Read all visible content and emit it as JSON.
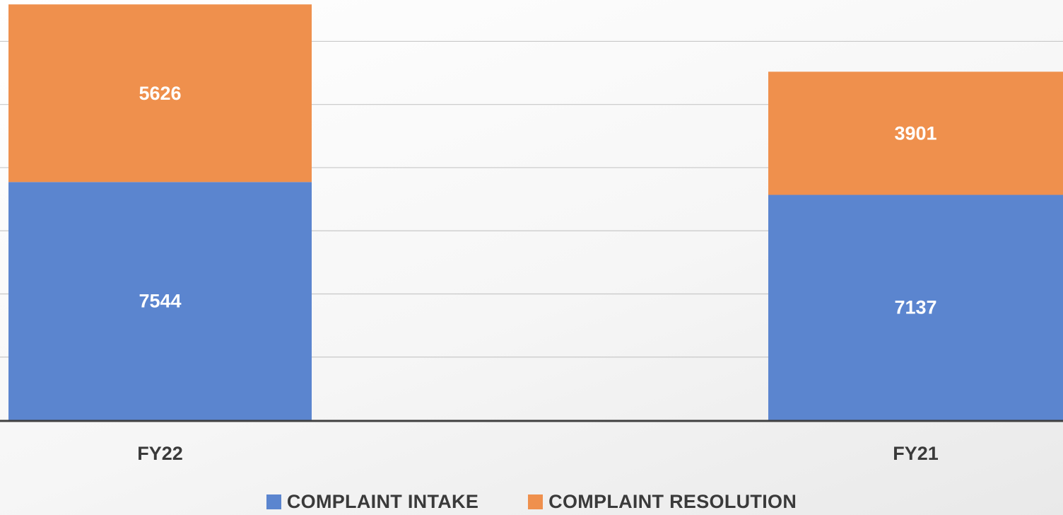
{
  "chart_data": {
    "type": "bar",
    "stacked": true,
    "categories": [
      "FY22",
      "FY21"
    ],
    "series": [
      {
        "name": "COMPLAINT INTAKE",
        "values": [
          7544,
          7137
        ],
        "color": "#5b85cf"
      },
      {
        "name": "COMPLAINT RESOLUTION",
        "values": [
          5626,
          3901
        ],
        "color": "#ef904d"
      }
    ],
    "data_labels": true,
    "ylim": [
      0,
      13500
    ],
    "gridlines": true,
    "legend_position": "bottom",
    "title": "",
    "xlabel": "",
    "ylabel": ""
  }
}
